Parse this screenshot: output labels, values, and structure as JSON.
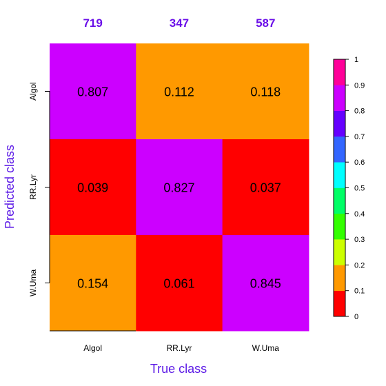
{
  "chart_data": {
    "type": "heatmap",
    "title": "",
    "xlabel": "True class",
    "ylabel": "Predicted class",
    "x_categories": [
      "Algol",
      "RR.Lyr",
      "W.Uma"
    ],
    "y_categories": [
      "Algol",
      "RR.Lyr",
      "W.Uma"
    ],
    "column_counts": [
      "719",
      "347",
      "587"
    ],
    "values": [
      [
        0.807,
        0.112,
        0.118
      ],
      [
        0.039,
        0.827,
        0.037
      ],
      [
        0.154,
        0.061,
        0.845
      ]
    ],
    "value_labels": [
      [
        "0.807",
        "0.112",
        "0.118"
      ],
      [
        "0.039",
        "0.827",
        "0.037"
      ],
      [
        "0.154",
        "0.061",
        "0.845"
      ]
    ],
    "colorbar": {
      "range": [
        0,
        1
      ],
      "ticks": [
        "0",
        "0.1",
        "0.2",
        "0.3",
        "0.4",
        "0.5",
        "0.6",
        "0.7",
        "0.8",
        "0.9",
        "1"
      ],
      "colors": [
        "#ff0000",
        "#ff9900",
        "#ccff00",
        "#33ff00",
        "#00ff66",
        "#00ffff",
        "#3366ff",
        "#6600ff",
        "#cc00ff",
        "#ff0099"
      ]
    },
    "label_color": "#5c1ae6",
    "count_color": "#6a0ee8"
  }
}
